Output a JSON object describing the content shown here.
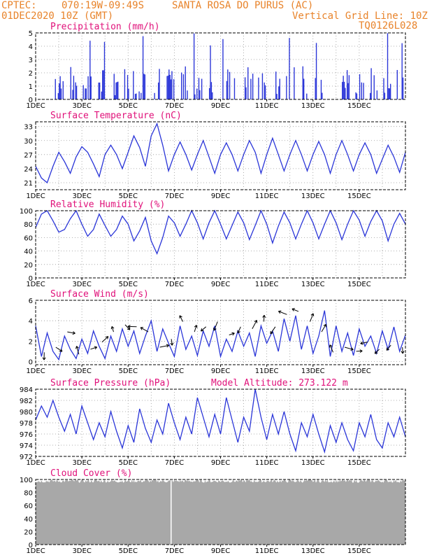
{
  "header": {
    "line1_left": "CPTEC:",
    "coords": "070:19W-09:49S",
    "station": "SANTA ROSA DO PURUS (AC)",
    "date": "01DEC2020 10Z (GMT)",
    "grid_note": "Vertical Grid Line: 10Z",
    "code": "TQ0126L028"
  },
  "x_axis": {
    "ticks": [
      "1DEC",
      "3DEC",
      "5DEC",
      "7DEC",
      "9DEC",
      "11DEC",
      "13DEC",
      "15DEC"
    ],
    "days": 16
  },
  "colors": {
    "line": "#2a35d8",
    "title": "#e0117a",
    "header": "#e8832a",
    "cloud": "#a8a8a8"
  },
  "chart_data": [
    {
      "type": "bar",
      "title": "Precipitation (mm/h)",
      "ylim": [
        0,
        5
      ],
      "yticks": [
        "0",
        "1",
        "2",
        "3",
        "4",
        "5"
      ],
      "note": "hourly bars, values 0-5 mm/h"
    },
    {
      "type": "line",
      "title": "Surface Temperature (nC)",
      "ylim": [
        19.5,
        34
      ],
      "yticks": [
        "21",
        "24",
        "27",
        "30",
        "33"
      ],
      "x": [
        0.0,
        0.25,
        0.5,
        0.75,
        1.0,
        1.25,
        1.5,
        1.75,
        2.0,
        2.25,
        2.5,
        2.75,
        3.0,
        3.25,
        3.5,
        3.75,
        4.0,
        4.25,
        4.5,
        4.75,
        5.0,
        5.25,
        5.5,
        5.75,
        6.0,
        6.25,
        6.5,
        6.75,
        7.0,
        7.25,
        7.5,
        7.75,
        8.0,
        8.25,
        8.5,
        8.75,
        9.0,
        9.25,
        9.5,
        9.75,
        10.0,
        10.25,
        10.5,
        10.75,
        11.0,
        11.25,
        11.5,
        11.75,
        12.0,
        12.25,
        12.5,
        12.75,
        13.0,
        13.25,
        13.5,
        13.75,
        14.0,
        14.25,
        14.5,
        14.75,
        15.0,
        15.25,
        15.5,
        15.75,
        16.0
      ],
      "values": [
        24.5,
        22.0,
        21.0,
        24.5,
        27.5,
        25.5,
        23.0,
        26.5,
        28.7,
        27.5,
        25.0,
        22.3,
        27.0,
        29.0,
        27.0,
        24.0,
        27.5,
        31.0,
        28.5,
        24.5,
        31.0,
        33.6,
        29.0,
        23.5,
        27.0,
        29.7,
        27.0,
        23.7,
        27.0,
        30.0,
        26.5,
        23.0,
        27.0,
        29.5,
        27.0,
        23.5,
        27.0,
        30.0,
        27.5,
        23.0,
        27.0,
        30.5,
        27.0,
        23.5,
        27.0,
        30.0,
        27.0,
        23.5,
        27.0,
        29.8,
        27.0,
        23.0,
        27.0,
        30.0,
        27.0,
        23.5,
        27.0,
        29.5,
        27.0,
        23.0,
        26.0,
        29.0,
        26.5,
        23.2,
        27.5
      ]
    },
    {
      "type": "line",
      "title": "Relative Humidity (%)",
      "ylim": [
        0,
        100
      ],
      "yticks": [
        "0",
        "20",
        "40",
        "60",
        "80",
        "100"
      ],
      "x": [
        0.0,
        0.25,
        0.5,
        0.75,
        1.0,
        1.25,
        1.5,
        1.75,
        2.0,
        2.25,
        2.5,
        2.75,
        3.0,
        3.25,
        3.5,
        3.75,
        4.0,
        4.25,
        4.5,
        4.75,
        5.0,
        5.25,
        5.5,
        5.75,
        6.0,
        6.25,
        6.5,
        6.75,
        7.0,
        7.25,
        7.5,
        7.75,
        8.0,
        8.25,
        8.5,
        8.75,
        9.0,
        9.25,
        9.5,
        9.75,
        10.0,
        10.25,
        10.5,
        10.75,
        11.0,
        11.25,
        11.5,
        11.75,
        12.0,
        12.25,
        12.5,
        12.75,
        13.0,
        13.25,
        13.5,
        13.75,
        14.0,
        14.25,
        14.5,
        14.75,
        15.0,
        15.25,
        15.5,
        15.75,
        16.0
      ],
      "values": [
        75,
        95,
        100,
        85,
        68,
        72,
        88,
        100,
        80,
        62,
        72,
        95,
        78,
        62,
        72,
        92,
        80,
        55,
        70,
        90,
        55,
        36,
        60,
        92,
        82,
        62,
        80,
        100,
        82,
        58,
        82,
        100,
        80,
        58,
        78,
        98,
        82,
        57,
        78,
        100,
        80,
        52,
        77,
        98,
        82,
        58,
        80,
        100,
        82,
        58,
        80,
        100,
        82,
        57,
        80,
        100,
        86,
        62,
        84,
        100,
        85,
        55,
        80,
        96,
        80
      ]
    },
    {
      "type": "line",
      "title": "Surface Wind (m/s)",
      "ylim": [
        -0.3,
        6
      ],
      "yticks": [
        "0",
        "2",
        "4",
        "6"
      ],
      "note": "wind speed line with direction arrows",
      "x": [
        0.0,
        0.25,
        0.5,
        0.75,
        1.0,
        1.25,
        1.5,
        1.75,
        2.0,
        2.25,
        2.5,
        2.75,
        3.0,
        3.25,
        3.5,
        3.75,
        4.0,
        4.25,
        4.5,
        4.75,
        5.0,
        5.25,
        5.5,
        5.75,
        6.0,
        6.25,
        6.5,
        6.75,
        7.0,
        7.25,
        7.5,
        7.75,
        8.0,
        8.25,
        8.5,
        8.75,
        9.0,
        9.25,
        9.5,
        9.75,
        10.0,
        10.25,
        10.5,
        10.75,
        11.0,
        11.25,
        11.5,
        11.75,
        12.0,
        12.25,
        12.5,
        12.75,
        13.0,
        13.25,
        13.5,
        13.75,
        14.0,
        14.25,
        14.5,
        14.75,
        15.0,
        15.25,
        15.5,
        15.75,
        16.0
      ],
      "values": [
        3.5,
        0.5,
        2.8,
        1.0,
        0.2,
        2.5,
        1.2,
        0.3,
        2.2,
        0.8,
        3.0,
        1.5,
        0.3,
        2.5,
        1.0,
        3.2,
        1.5,
        3.0,
        0.8,
        2.5,
        4.0,
        1.0,
        3.2,
        1.8,
        0.5,
        3.5,
        1.2,
        2.5,
        0.6,
        3.0,
        1.5,
        3.5,
        0.5,
        2.2,
        1.0,
        3.0,
        1.5,
        2.8,
        0.5,
        3.5,
        1.8,
        3.0,
        1.0,
        4.2,
        2.0,
        4.5,
        1.2,
        3.5,
        0.8,
        2.5,
        5.0,
        0.5,
        3.5,
        1.0,
        2.8,
        0.6,
        3.2,
        1.5,
        2.5,
        0.8,
        3.0,
        1.2,
        3.4,
        1.0,
        2.6
      ]
    },
    {
      "type": "line",
      "title": "Surface Pressure (hPa)",
      "subtitle": "Model Altitude: 273.122 m",
      "ylim": [
        972,
        984
      ],
      "yticks": [
        "972",
        "974",
        "976",
        "978",
        "980",
        "982",
        "984"
      ],
      "x": [
        0.0,
        0.25,
        0.5,
        0.75,
        1.0,
        1.25,
        1.5,
        1.75,
        2.0,
        2.25,
        2.5,
        2.75,
        3.0,
        3.25,
        3.5,
        3.75,
        4.0,
        4.25,
        4.5,
        4.75,
        5.0,
        5.25,
        5.5,
        5.75,
        6.0,
        6.25,
        6.5,
        6.75,
        7.0,
        7.25,
        7.5,
        7.75,
        8.0,
        8.25,
        8.5,
        8.75,
        9.0,
        9.25,
        9.5,
        9.75,
        10.0,
        10.25,
        10.5,
        10.75,
        11.0,
        11.25,
        11.5,
        11.75,
        12.0,
        12.25,
        12.5,
        12.75,
        13.0,
        13.25,
        13.5,
        13.75,
        14.0,
        14.25,
        14.5,
        14.75,
        15.0,
        15.25,
        15.5,
        15.75,
        16.0
      ],
      "values": [
        978.5,
        981.0,
        979.0,
        982.0,
        979.0,
        976.5,
        979.5,
        976.0,
        981.0,
        978.0,
        975.0,
        978.0,
        975.5,
        980.0,
        976.5,
        973.5,
        977.5,
        974.5,
        980.5,
        977.0,
        974.5,
        978.5,
        976.0,
        981.5,
        978.0,
        975.0,
        979.0,
        976.0,
        982.5,
        979.0,
        975.5,
        979.5,
        976.0,
        982.5,
        978.5,
        974.5,
        979.0,
        976.5,
        984.0,
        979.0,
        975.0,
        979.5,
        976.0,
        980.0,
        976.0,
        973.0,
        978.0,
        975.5,
        979.5,
        976.0,
        972.8,
        977.5,
        974.5,
        978.0,
        975.0,
        973.0,
        978.0,
        975.5,
        979.5,
        975.0,
        973.5,
        978.0,
        975.5,
        979.0,
        975.5
      ]
    },
    {
      "type": "area",
      "title": "Cloud Cover (%)",
      "ylim": [
        0,
        100
      ],
      "yticks": [
        "0",
        "20",
        "40",
        "60",
        "80",
        "100"
      ],
      "note": "cloud cover near 95-100% throughout"
    }
  ]
}
